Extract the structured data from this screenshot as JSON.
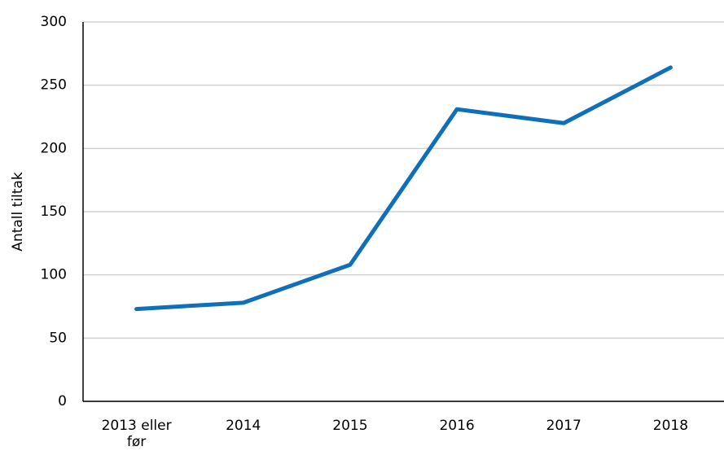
{
  "chart_data": {
    "type": "line",
    "y_label": "Antall tiltak",
    "categories": [
      "2013 eller før",
      "2014",
      "2015",
      "2016",
      "2017",
      "2018"
    ],
    "series": [
      {
        "name": "Antall tiltak",
        "color": "#0f6fb8",
        "values": [
          73,
          78,
          108,
          231,
          220,
          264
        ]
      }
    ],
    "ylim": [
      0,
      300
    ],
    "yticks": [
      0,
      50,
      100,
      150,
      200,
      250,
      300
    ],
    "grid": true
  }
}
